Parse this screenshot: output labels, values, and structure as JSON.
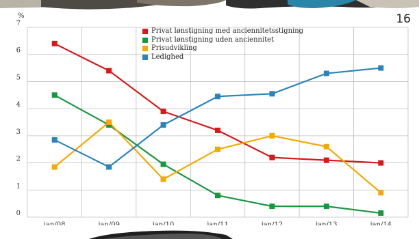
{
  "page_number": "16",
  "chart_data": {
    "type": "line",
    "unit_label": "%",
    "categories": [
      "jan/08",
      "jan/09",
      "jan/10",
      "jan/11",
      "jan/12",
      "jan/13",
      "jan/14"
    ],
    "y_ticks": [
      "0",
      "1",
      "2",
      "3",
      "4",
      "5",
      "6",
      "7"
    ],
    "ylim": [
      0,
      7
    ],
    "grid": true,
    "legend_position": "top-center",
    "series": [
      {
        "name": "Privat lønstigning med anciennitetsstigning",
        "color": "#d7191c",
        "values": [
          6.4,
          5.4,
          3.9,
          3.2,
          2.2,
          2.1,
          2.0
        ]
      },
      {
        "name": "Privat lønstigning uden anciennitet",
        "color": "#1a9641",
        "values": [
          4.5,
          3.4,
          1.95,
          0.8,
          0.4,
          0.4,
          0.15
        ]
      },
      {
        "name": "Prisudvikling",
        "color": "#f4a900",
        "values": [
          1.85,
          3.5,
          1.4,
          2.5,
          3.0,
          2.6,
          0.9
        ]
      },
      {
        "name": "Ledighed",
        "color": "#2b83ba",
        "values": [
          2.85,
          1.85,
          3.4,
          4.45,
          4.55,
          5.3,
          5.5
        ]
      }
    ]
  }
}
